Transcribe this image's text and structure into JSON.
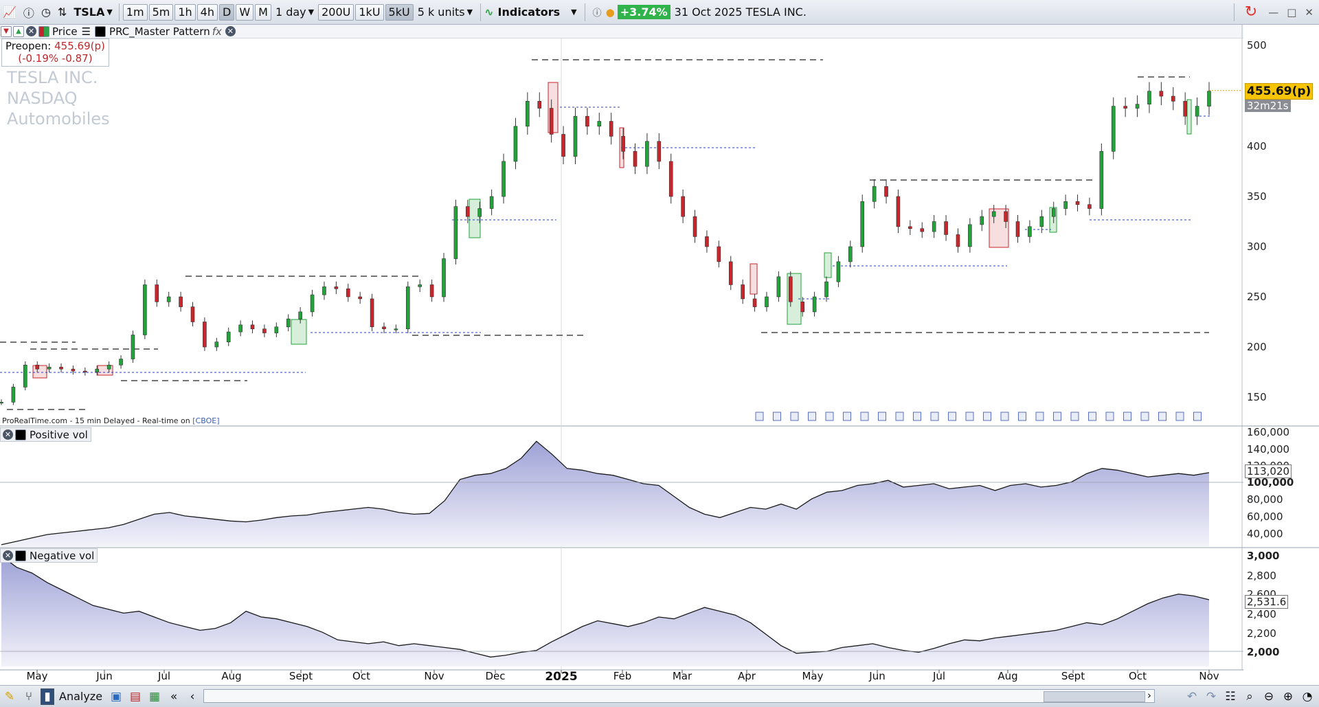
{
  "toolbar": {
    "symbol": "TSLA",
    "tf_buttons": [
      "1m",
      "5m",
      "1h",
      "4h",
      "D",
      "W",
      "M"
    ],
    "active_tf": "D",
    "period": "1 day",
    "units_buttons": [
      "200U",
      "1kU",
      "5kU"
    ],
    "units": "5 k units",
    "indicators_label": "Indicators",
    "change_pct": "+3.74%",
    "instrument_title": "31 Oct 2025 TESLA INC."
  },
  "chart_bar": {
    "price_label": "Price",
    "indicator_name": "PRC_Master Pattern"
  },
  "preopen": {
    "label": "Preopen:",
    "value": "455.69(p)",
    "change": "(-0.19% -0.87)"
  },
  "watermark": {
    "name": "TESLA INC.",
    "exchange": "NASDAQ",
    "sector": "Automobiles"
  },
  "source_note": {
    "text": "ProRealTime.com - 15 min Delayed - Real-time on ",
    "link": "[CBOE]"
  },
  "price_panel": {
    "last_price_tag": "455.69(p)",
    "countdown_tag": "32m21s",
    "axis_labels": [
      "500",
      "450",
      "400",
      "350",
      "300",
      "250",
      "200",
      "150"
    ]
  },
  "positive_panel": {
    "title": "Positive vol",
    "current_value": "113,020",
    "axis_labels": [
      "160,000",
      "140,000",
      "120,000",
      "100,000",
      "80,000",
      "60,000",
      "40,000"
    ]
  },
  "negative_panel": {
    "title": "Negative vol",
    "current_value": "2,531.6",
    "axis_labels": [
      "3,000",
      "2,800",
      "2,600",
      "2,400",
      "2,200",
      "2,000"
    ]
  },
  "x_axis": {
    "labels": [
      "May",
      "Jun",
      "Jul",
      "Aug",
      "Sept",
      "Oct",
      "Nov",
      "Dec",
      "2025",
      "Feb",
      "Mar",
      "Apr",
      "May",
      "Jun",
      "Jul",
      "Aug",
      "Sept",
      "Oct",
      "Nov"
    ]
  },
  "bottombar": {
    "analyze_label": "Analyze"
  },
  "colors": {
    "up": "#22a33a",
    "down": "#c7262c",
    "area": "#b8bbe0",
    "price_tag": "#f6c400"
  },
  "chart_data": {
    "type": "candlestick",
    "price_series_weekly_close": [
      145,
      160,
      182,
      178,
      180,
      178,
      176,
      175,
      178,
      182,
      188,
      212,
      262,
      245,
      250,
      240,
      225,
      200,
      205,
      215,
      222,
      218,
      214,
      220,
      228,
      235,
      252,
      260,
      258,
      250,
      248,
      220,
      218,
      218,
      260,
      262,
      250,
      288,
      340,
      330,
      338,
      350,
      385,
      420,
      445,
      438,
      412,
      390,
      430,
      420,
      425,
      410,
      395,
      380,
      405,
      385,
      350,
      330,
      310,
      300,
      285,
      262,
      248,
      240,
      250,
      270,
      245,
      235,
      250,
      265,
      285,
      300,
      345,
      360,
      350,
      320,
      318,
      315,
      325,
      312,
      300,
      322,
      330,
      335,
      325,
      310,
      320,
      330,
      338,
      345,
      342,
      338,
      395,
      440,
      438,
      442,
      455,
      450,
      445,
      430,
      440,
      455
    ],
    "positive_vol_weekly": [
      28000,
      32000,
      36000,
      40000,
      42000,
      44000,
      46000,
      48000,
      52000,
      58000,
      64000,
      66000,
      62000,
      60000,
      58000,
      56000,
      55000,
      57000,
      60000,
      62000,
      63000,
      66000,
      68000,
      70000,
      72000,
      70000,
      66000,
      64000,
      65000,
      80000,
      105000,
      110000,
      112000,
      118000,
      130000,
      150000,
      135000,
      118000,
      116000,
      112000,
      110000,
      105000,
      100000,
      98000,
      85000,
      72000,
      64000,
      60000,
      66000,
      72000,
      70000,
      76000,
      70000,
      82000,
      90000,
      92000,
      98000,
      100000,
      104000,
      96000,
      98000,
      100000,
      94000,
      96000,
      98000,
      92000,
      98000,
      100000,
      96000,
      98000,
      102000,
      112000,
      118000,
      116000,
      112000,
      108000,
      110000,
      112000,
      110000,
      113020
    ]
  }
}
